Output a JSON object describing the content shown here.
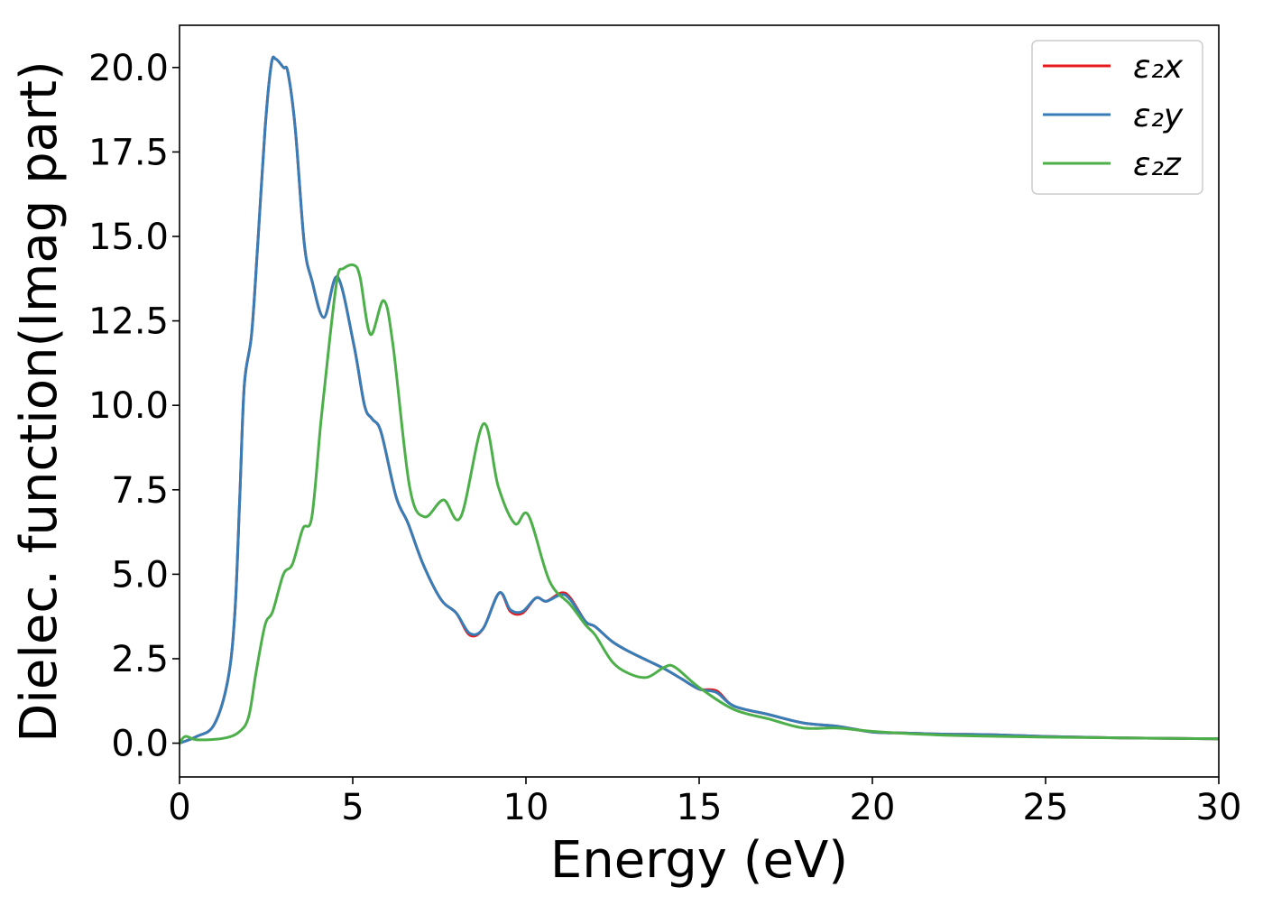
{
  "chart_data": {
    "type": "line",
    "title": "",
    "xlabel": "Energy (eV)",
    "ylabel": "Dielec. function(Imag part)",
    "xlim": [
      0,
      30
    ],
    "ylim": [
      -1.0,
      21.25
    ],
    "xticks": [
      "0",
      "5",
      "10",
      "15",
      "20",
      "25",
      "30"
    ],
    "yticks": [
      "0.0",
      "2.5",
      "5.0",
      "7.5",
      "10.0",
      "12.5",
      "15.0",
      "17.5",
      "20.0"
    ],
    "grid": false,
    "legend_position": "top-right",
    "series": [
      {
        "name": "ε₂x",
        "color": "#e41a1c",
        "x": [
          0,
          0.5,
          1.0,
          1.4,
          1.6,
          1.74,
          1.87,
          2.08,
          2.26,
          2.47,
          2.65,
          2.78,
          3.0,
          3.13,
          3.34,
          3.6,
          3.82,
          4.17,
          4.56,
          5.03,
          5.34,
          5.56,
          5.82,
          6.25,
          6.6,
          7.03,
          7.55,
          7.99,
          8.38,
          8.77,
          9.23,
          9.55,
          9.9,
          10.29,
          10.59,
          11.02,
          11.28,
          11.72,
          12,
          12.5,
          13,
          13.5,
          14,
          14.5,
          15,
          15.5,
          16,
          17,
          18,
          19,
          20,
          21,
          22,
          23.5,
          25,
          27,
          30
        ],
        "y": [
          0,
          0.2,
          0.55,
          1.9,
          3.9,
          7.3,
          10.6,
          12.1,
          14.8,
          18.2,
          20.1,
          20.25,
          20.0,
          19.85,
          18.2,
          14.8,
          13.7,
          12.6,
          13.8,
          11.8,
          10.0,
          9.6,
          9.2,
          7.3,
          6.5,
          5.3,
          4.25,
          3.85,
          3.2,
          3.4,
          4.45,
          3.9,
          3.85,
          4.3,
          4.2,
          4.45,
          4.3,
          3.6,
          3.45,
          3.0,
          2.7,
          2.45,
          2.2,
          1.9,
          1.6,
          1.55,
          1.1,
          0.85,
          0.6,
          0.5,
          0.33,
          0.3,
          0.27,
          0.25,
          0.2,
          0.16,
          0.13
        ]
      },
      {
        "name": "ε₂y",
        "color": "#377eb8",
        "x": [
          0,
          0.5,
          1.0,
          1.4,
          1.6,
          1.74,
          1.87,
          2.08,
          2.26,
          2.47,
          2.65,
          2.78,
          3.0,
          3.13,
          3.34,
          3.6,
          3.82,
          4.17,
          4.56,
          5.03,
          5.34,
          5.56,
          5.82,
          6.25,
          6.6,
          7.03,
          7.55,
          7.99,
          8.38,
          8.77,
          9.23,
          9.55,
          9.9,
          10.29,
          10.59,
          11.02,
          11.28,
          11.72,
          12,
          12.5,
          13,
          13.5,
          14,
          14.5,
          15,
          15.5,
          16,
          17,
          18,
          19,
          20,
          21,
          22,
          23.5,
          25,
          27,
          30
        ],
        "y": [
          0,
          0.2,
          0.55,
          1.9,
          3.9,
          7.3,
          10.6,
          12.1,
          14.8,
          18.2,
          20.1,
          20.25,
          20.0,
          19.85,
          18.2,
          14.8,
          13.7,
          12.6,
          13.8,
          11.8,
          10.0,
          9.6,
          9.2,
          7.3,
          6.5,
          5.3,
          4.25,
          3.85,
          3.25,
          3.4,
          4.45,
          3.95,
          3.9,
          4.3,
          4.2,
          4.4,
          4.25,
          3.6,
          3.45,
          3.0,
          2.7,
          2.45,
          2.2,
          1.9,
          1.6,
          1.5,
          1.1,
          0.85,
          0.6,
          0.5,
          0.33,
          0.3,
          0.27,
          0.25,
          0.2,
          0.16,
          0.13
        ]
      },
      {
        "name": "ε₂z",
        "color": "#4daf4a",
        "x": [
          0,
          0.17,
          0.52,
          1.3,
          1.74,
          2.0,
          2.21,
          2.47,
          2.69,
          3.0,
          3.26,
          3.56,
          3.82,
          4.08,
          4.34,
          4.56,
          4.73,
          5.03,
          5.21,
          5.51,
          5.89,
          6.16,
          6.64,
          7.07,
          7.62,
          8.12,
          8.77,
          9.2,
          9.68,
          10.07,
          10.68,
          11.28,
          11.72,
          12,
          12.5,
          13,
          13.5,
          14,
          14.3,
          15,
          16,
          17,
          18,
          19,
          20,
          22,
          25,
          30
        ],
        "y": [
          0,
          0.2,
          0.1,
          0.15,
          0.35,
          0.8,
          2.1,
          3.5,
          3.9,
          5.0,
          5.3,
          6.35,
          6.7,
          9.5,
          12.0,
          13.8,
          14.05,
          14.15,
          13.8,
          12.1,
          13.1,
          11.8,
          7.6,
          6.7,
          7.2,
          6.7,
          9.45,
          7.6,
          6.5,
          6.75,
          4.8,
          4.1,
          3.5,
          3.2,
          2.4,
          2.05,
          1.95,
          2.25,
          2.25,
          1.65,
          1.0,
          0.72,
          0.45,
          0.45,
          0.35,
          0.24,
          0.18,
          0.13
        ]
      }
    ]
  }
}
